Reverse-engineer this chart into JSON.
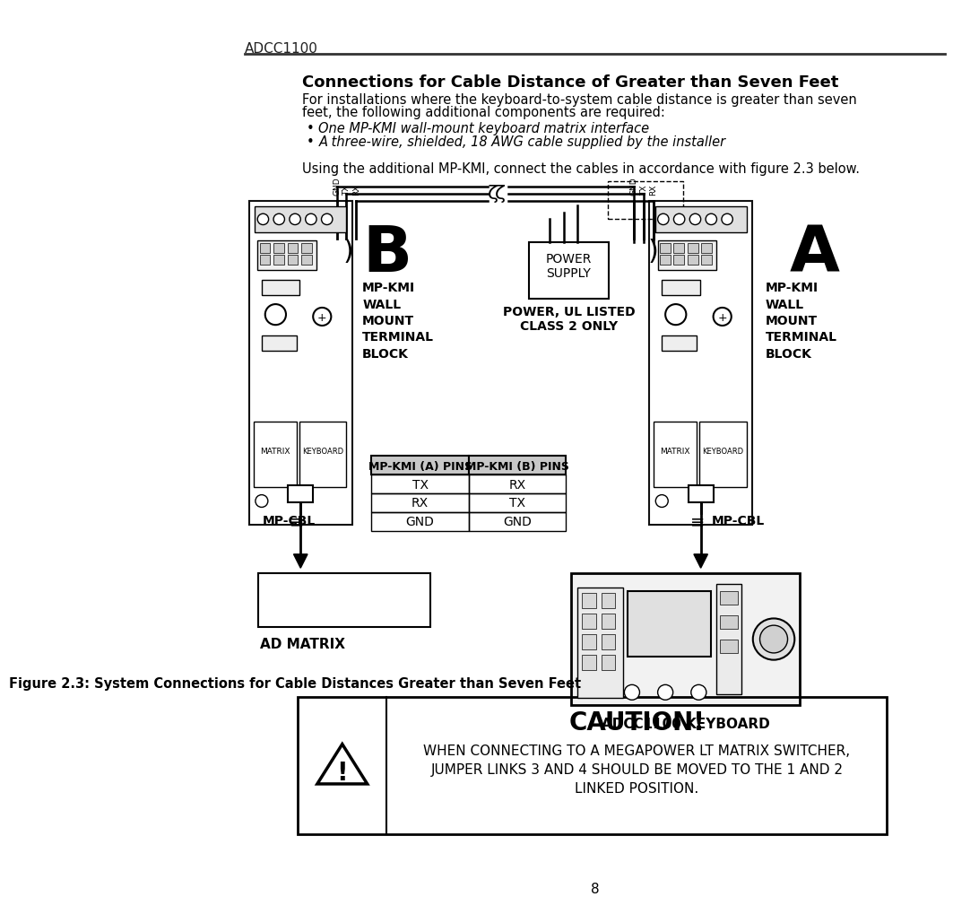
{
  "page_header": "ADCC1100",
  "title": "Connections for Cable Distance of Greater than Seven Feet",
  "body_text1": "For installations where the keyboard-to-system cable distance is greater than seven",
  "body_text2": "feet, the following additional components are required:",
  "bullets": [
    "One MP-KMI wall-mount keyboard matrix interface",
    "A three-wire, shielded, 18 AWG cable supplied by the installer"
  ],
  "instruction": "Using the additional MP-KMI, connect the cables in accordance with figure 2.3 below.",
  "table_header": [
    "MP-KMI (A) PINS",
    "MP-KMI (B) PINS"
  ],
  "table_rows": [
    [
      "TX",
      "RX"
    ],
    [
      "RX",
      "TX"
    ],
    [
      "GND",
      "GND"
    ]
  ],
  "label_B": "B",
  "label_A": "A",
  "label_mpkmi_wall": "MP-KMI\nWALL\nMOUNT\nTERMINAL\nBLOCK",
  "label_power": "POWER\nSUPPLY",
  "label_power_ul": "POWER, UL LISTED\nCLASS 2 ONLY",
  "label_mpcbl_left": "MP-CBL",
  "label_mpcbl_right": "MP-CBL",
  "label_ad_matrix": "AD MATRIX",
  "label_adcc_keyboard": "ADCC1100 KEYBOARD",
  "figure_caption": "Figure 2.3: System Connections for Cable Distances Greater than Seven Feet",
  "caution_title": "CAUTION!",
  "caution_text": "WHEN CONNECTING TO A MEGAPOWER LT MATRIX SWITCHER,\nJUMPER LINKS 3 AND 4 SHOULD BE MOVED TO THE 1 AND 2\nLINKED POSITION.",
  "page_number": "8",
  "bg_color": "#ffffff",
  "text_color": "#000000"
}
